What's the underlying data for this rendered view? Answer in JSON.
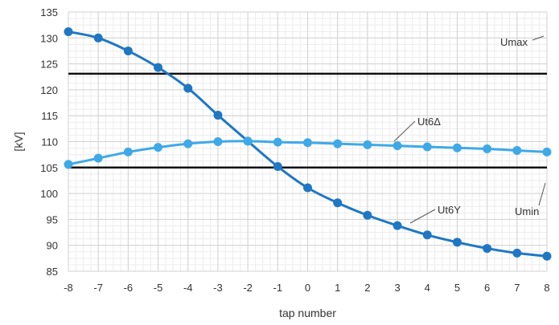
{
  "chart_data": {
    "type": "line",
    "xlabel": "tap number",
    "ylabel": "[kV]",
    "xlim": [
      -8,
      8
    ],
    "ylim": [
      85,
      135
    ],
    "x_ticks": [
      -8,
      -7,
      -6,
      -5,
      -4,
      -3,
      -2,
      -1,
      0,
      1,
      2,
      3,
      4,
      5,
      6,
      7,
      8
    ],
    "y_ticks": [
      85,
      90,
      95,
      100,
      105,
      110,
      115,
      120,
      125,
      130,
      135
    ],
    "grid": true,
    "x": [
      -8,
      -7,
      -6,
      -5,
      -4,
      -3,
      -2,
      -1,
      0,
      1,
      2,
      3,
      4,
      5,
      6,
      7,
      8
    ],
    "series": [
      {
        "name": "Ut6Y",
        "color": "#1f77c4",
        "values": [
          131.2,
          130.0,
          127.5,
          124.3,
          120.3,
          115.1,
          110.1,
          105.2,
          101.1,
          98.2,
          95.8,
          93.8,
          92.0,
          90.6,
          89.4,
          88.5,
          87.9
        ]
      },
      {
        "name": "Ut6Δ",
        "color": "#3fa9e8",
        "values": [
          105.6,
          106.8,
          108.0,
          108.9,
          109.6,
          110.0,
          110.1,
          109.9,
          109.8,
          109.6,
          109.4,
          109.2,
          109.0,
          108.8,
          108.6,
          108.3,
          108.0
        ]
      }
    ],
    "reference_lines": [
      {
        "name": "Umax",
        "y": 123.1,
        "color": "#111111"
      },
      {
        "name": "Umin",
        "y": 105.0,
        "color": "#111111"
      }
    ],
    "annotations": {
      "umax_label": "Umax",
      "umin_label": "Umin",
      "ut6d_label": "Ut6Δ",
      "ut6y_label": "Ut6Y"
    }
  }
}
